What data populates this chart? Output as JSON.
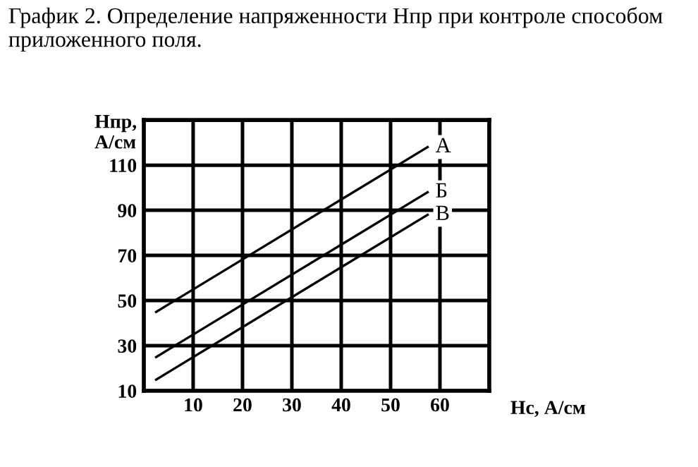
{
  "chart_data": {
    "type": "line",
    "title": "График 2. Определение напряженности Нпр при контроле способом приложенного поля.",
    "xlabel": "Нс, А/см",
    "ylabel": "Нпр,\nА/см",
    "x": [
      2.5,
      57.5
    ],
    "series": [
      {
        "name": "А",
        "color": "#000000",
        "values": [
          45,
          118
        ]
      },
      {
        "name": "Б",
        "color": "#000000",
        "values": [
          25,
          98
        ]
      },
      {
        "name": "В",
        "color": "#000000",
        "values": [
          15,
          88
        ]
      }
    ],
    "xlim": [
      0,
      70
    ],
    "xticks": [
      {
        "value": 0,
        "label": null
      },
      10,
      20,
      30,
      40,
      50,
      60,
      {
        "value": 70,
        "label": null
      }
    ],
    "ylim": [
      10,
      130
    ],
    "yticks": [
      10,
      30,
      50,
      70,
      90,
      110,
      {
        "value": 130,
        "label": null
      }
    ],
    "grid": true,
    "legend": false,
    "marker": "none",
    "line_style": "solid"
  }
}
